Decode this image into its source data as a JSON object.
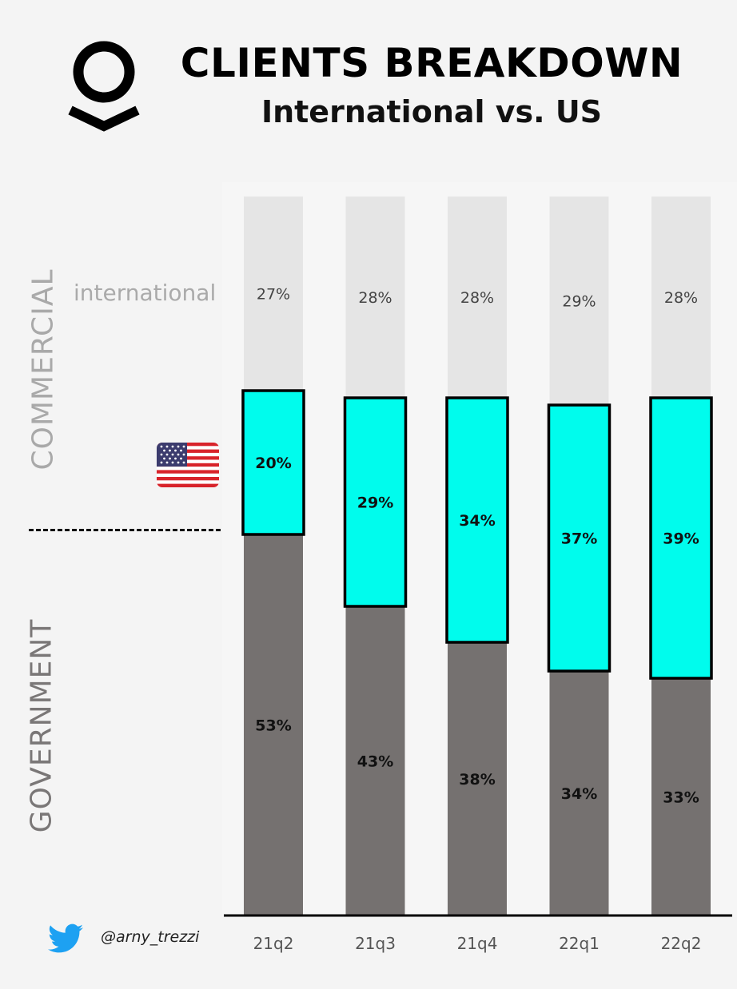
{
  "header": {
    "title": "CLIENTS BREAKDOWN",
    "subtitle": "International vs. US"
  },
  "labels": {
    "commercial": "COMMERCIAL",
    "government": "GOVERNMENT",
    "international": "international"
  },
  "footer": {
    "handle": "@arny_trezzi",
    "icon": "twitter-bird-icon"
  },
  "icons": {
    "logo": "palantir-logo",
    "flag": "us-flag-icon"
  },
  "colors": {
    "international": "#e5e5e5",
    "us": "#00fced",
    "government": "#757170",
    "flag_red": "#d8232a",
    "flag_blue": "#3b3b6d",
    "twitter": "#1da1f2"
  },
  "chart_data": {
    "type": "bar",
    "stacked": true,
    "categories": [
      "21q2",
      "21q3",
      "21q4",
      "22q1",
      "22q2"
    ],
    "series": [
      {
        "name": "GOVERNMENT",
        "values": [
          53,
          43,
          38,
          34,
          33
        ],
        "labels": [
          "53%",
          "43%",
          "38%",
          "34%",
          "33%"
        ]
      },
      {
        "name": "",
        "values": [
          20,
          29,
          34,
          37,
          39
        ],
        "labels": [
          "20%",
          "29%",
          "34%",
          "37%",
          "39%"
        ]
      },
      {
        "name": "international",
        "values": [
          27,
          28,
          28,
          29,
          28
        ],
        "labels": [
          "27%",
          "28%",
          "28%",
          "29%",
          "28%"
        ]
      }
    ],
    "ylim": [
      0,
      100
    ],
    "grid": false,
    "legend": "left side labels"
  }
}
